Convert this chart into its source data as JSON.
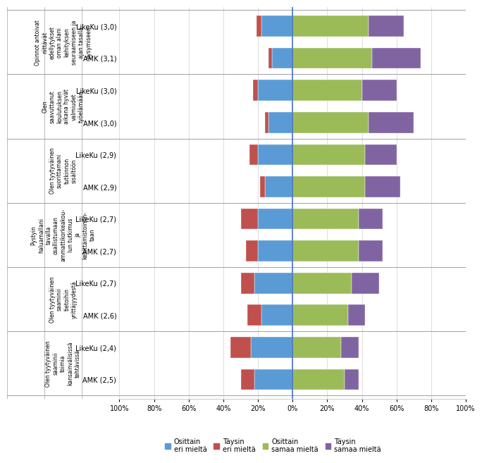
{
  "rows": [
    {
      "label": "LikeKu (3,0)",
      "osittain_eri": 18,
      "taysin_eri": 3,
      "osittain_samaa": 44,
      "taysin_samaa": 20
    },
    {
      "label": "AMK (3,1)",
      "osittain_eri": 12,
      "taysin_eri": 2,
      "osittain_samaa": 46,
      "taysin_samaa": 28
    },
    {
      "label": "LikeKu (3,0)",
      "osittain_eri": 20,
      "taysin_eri": 3,
      "osittain_samaa": 40,
      "taysin_samaa": 20
    },
    {
      "label": "AMK (3,0)",
      "osittain_eri": 14,
      "taysin_eri": 2,
      "osittain_samaa": 44,
      "taysin_samaa": 26
    },
    {
      "label": "LikeKu (2,9)",
      "osittain_eri": 20,
      "taysin_eri": 5,
      "osittain_samaa": 42,
      "taysin_samaa": 18
    },
    {
      "label": "AMK (2,9)",
      "osittain_eri": 16,
      "taysin_eri": 3,
      "osittain_samaa": 42,
      "taysin_samaa": 20
    },
    {
      "label": "LikeKu (2,7)",
      "osittain_eri": 20,
      "taysin_eri": 10,
      "osittain_samaa": 38,
      "taysin_samaa": 14
    },
    {
      "label": "AMK (2,7)",
      "osittain_eri": 20,
      "taysin_eri": 7,
      "osittain_samaa": 38,
      "taysin_samaa": 14
    },
    {
      "label": "LikeKu (2,7)",
      "osittain_eri": 22,
      "taysin_eri": 8,
      "osittain_samaa": 34,
      "taysin_samaa": 16
    },
    {
      "label": "AMK (2,6)",
      "osittain_eri": 18,
      "taysin_eri": 8,
      "osittain_samaa": 32,
      "taysin_samaa": 10
    },
    {
      "label": "LikeKu (2,4)",
      "osittain_eri": 24,
      "taysin_eri": 12,
      "osittain_samaa": 28,
      "taysin_samaa": 10
    },
    {
      "label": "AMK (2,5)",
      "osittain_eri": 22,
      "taysin_eri": 8,
      "osittain_samaa": 30,
      "taysin_samaa": 8
    }
  ],
  "group_labels": [
    "Opinnot antoivat\nriittävät\nedellytykset\noman alani\nkehityksen\nseuraamiseen ja\najan tasalla\npysymiseen",
    "Olen\nsaavuttanut\nkoulutuksen\naikana hyvät\nvalmiudet\ntyöelämään",
    "Olen tyytyväinen\nsuorittamani\ntutkinnon\nsisältöön",
    "Pystyin\nhaluamallani\ntavalla\nosallistumaan\nammattikorkeakou-\nlun tutkimus\nja\nkehittämistoimin-\ntaan",
    "Olen tyytyväinen\nsaaminii\ntietoihin\nyrittäjyydestä",
    "Olen tyytyväinen\nsaaminii\ntoimia\nkansainvälisissä\ntehtävissä"
  ],
  "colors": {
    "osittain_eri": "#5B9BD5",
    "taysin_eri": "#C0504D",
    "osittain_samaa": "#9BBB59",
    "taysin_samaa": "#8064A2"
  },
  "legend_labels": [
    "Osittain\neri mieltä",
    "Täysin\neri mieltä",
    "Osittain\nsamaa mieltä",
    "Täysin\nsamaa mieltä"
  ],
  "xticks": [
    -100,
    -80,
    -60,
    -40,
    -20,
    0,
    20,
    40,
    60,
    80,
    100
  ],
  "xticklabels": [
    "100%",
    "80%",
    "60%",
    "40%",
    "20%",
    "0%",
    "20%",
    "40%",
    "60%",
    "80%",
    "100%"
  ],
  "background_color": "#FFFFFF",
  "vline_color": "#4472C4",
  "grid_color": "#D0D0D0",
  "separator_color": "#A0A0A0",
  "label_fontsize": 7.0,
  "tick_fontsize": 7.0,
  "legend_fontsize": 7.0,
  "bar_height": 0.65
}
